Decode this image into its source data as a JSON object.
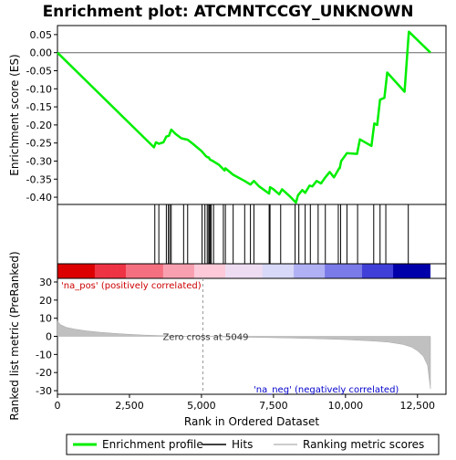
{
  "chart_data": {
    "type": "line",
    "title": "Enrichment plot: ATCMNTCCGY_UNKNOWN",
    "top_panel": {
      "ylabel": "Enrichment score (ES)",
      "ylim": [
        -0.42,
        0.075
      ],
      "yticks": [
        0.05,
        0.0,
        -0.05,
        -0.1,
        -0.15,
        -0.2,
        -0.25,
        -0.3,
        -0.35,
        -0.4
      ],
      "ytick_labels": [
        "0.05",
        "0.00",
        "-0.05",
        "-0.10",
        "-0.15",
        "-0.20",
        "-0.25",
        "-0.30",
        "-0.35",
        "-0.40"
      ],
      "series": [
        {
          "name": "Enrichment profile",
          "color": "#00ee00",
          "x": [
            0,
            3350,
            3420,
            3520,
            3680,
            3780,
            3870,
            3950,
            4100,
            4300,
            4520,
            4700,
            5000,
            5150,
            5200,
            5250,
            5300,
            5400,
            5600,
            5800,
            5830,
            6100,
            6500,
            6700,
            6820,
            7000,
            7350,
            7380,
            7500,
            7700,
            7800,
            8100,
            8280,
            8350,
            8500,
            8600,
            8750,
            8850,
            9000,
            9150,
            9300,
            9450,
            9600,
            9780,
            9800,
            9850,
            10050,
            10400,
            10500,
            10900,
            11000,
            11100,
            11200,
            11350,
            11450,
            12050,
            12200,
            12950
          ],
          "y": [
            0.0,
            -0.262,
            -0.248,
            -0.252,
            -0.248,
            -0.232,
            -0.23,
            -0.213,
            -0.225,
            -0.237,
            -0.241,
            -0.252,
            -0.272,
            -0.286,
            -0.289,
            -0.29,
            -0.296,
            -0.3,
            -0.31,
            -0.326,
            -0.32,
            -0.338,
            -0.355,
            -0.365,
            -0.355,
            -0.37,
            -0.39,
            -0.372,
            -0.378,
            -0.392,
            -0.378,
            -0.4,
            -0.415,
            -0.395,
            -0.38,
            -0.388,
            -0.368,
            -0.37,
            -0.355,
            -0.362,
            -0.345,
            -0.33,
            -0.345,
            -0.32,
            -0.32,
            -0.3,
            -0.278,
            -0.28,
            -0.24,
            -0.258,
            -0.196,
            -0.2,
            -0.13,
            -0.125,
            -0.055,
            -0.108,
            0.058,
            0.0
          ]
        }
      ]
    },
    "hits": [
      3380,
      3520,
      3780,
      3850,
      3900,
      3950,
      4380,
      4520,
      5020,
      5120,
      5200,
      5250,
      5280,
      5300,
      5340,
      5420,
      5760,
      5830,
      6100,
      6500,
      6700,
      6820,
      7350,
      7380,
      7750,
      8250,
      8380,
      8600,
      8780,
      9050,
      9300,
      9750,
      9830,
      10050,
      10420,
      10980,
      11200,
      11400,
      12180
    ],
    "colorbar": {
      "pos_label": "'na_pos' (positively correlated)",
      "neg_label": "'na_neg' (negatively correlated)",
      "stops": [
        "#dd0000",
        "#ee3344",
        "#f47080",
        "#f9a0b0",
        "#fccad8",
        "#eeddf2",
        "#d8d8f8",
        "#b0b0f4",
        "#7a7ae8",
        "#4040d8",
        "#0000aa"
      ]
    },
    "bottom_panel": {
      "ylabel": "Ranked list metric (PreRanked)",
      "xlabel": "Rank in Ordered Dataset",
      "ylim": [
        -32,
        32
      ],
      "yticks": [
        30,
        20,
        10,
        0,
        -10,
        -20,
        -30
      ],
      "ytick_labels": [
        "30",
        "20",
        "10",
        "0",
        "-10",
        "-20",
        "-30"
      ],
      "xlim": [
        0,
        13000
      ],
      "xticks": [
        0,
        2500,
        5000,
        7500,
        10000,
        12500
      ],
      "xtick_labels": [
        "0",
        "2,500",
        "5,000",
        "7,500",
        "10,000",
        "12,500"
      ],
      "zero_cross_label": "Zero cross at 5049",
      "zero_cross": 5049,
      "metric": {
        "x": [
          0,
          100,
          300,
          600,
          1000,
          1500,
          2000,
          2500,
          3000,
          3500,
          4000,
          4500,
          5049,
          5500,
          6000,
          7000,
          8000,
          9000,
          10000,
          11000,
          11500,
          12000,
          12300,
          12500,
          12700,
          12850,
          12950
        ],
        "y": [
          8.5,
          6.5,
          5.0,
          4.0,
          3.0,
          2.2,
          1.6,
          1.1,
          0.7,
          0.45,
          0.25,
          0.1,
          0.0,
          -0.2,
          -0.35,
          -0.6,
          -0.9,
          -1.3,
          -1.8,
          -2.6,
          -3.2,
          -4.5,
          -6.0,
          -8.0,
          -11.0,
          -16.0,
          -29.0
        ]
      }
    },
    "legend": [
      {
        "label": "Enrichment profile",
        "color": "#00ee00",
        "kind": "line"
      },
      {
        "label": "Hits",
        "color": "#000000",
        "kind": "line"
      },
      {
        "label": "Ranking metric scores",
        "color": "#bbbbbb",
        "kind": "line"
      }
    ]
  }
}
